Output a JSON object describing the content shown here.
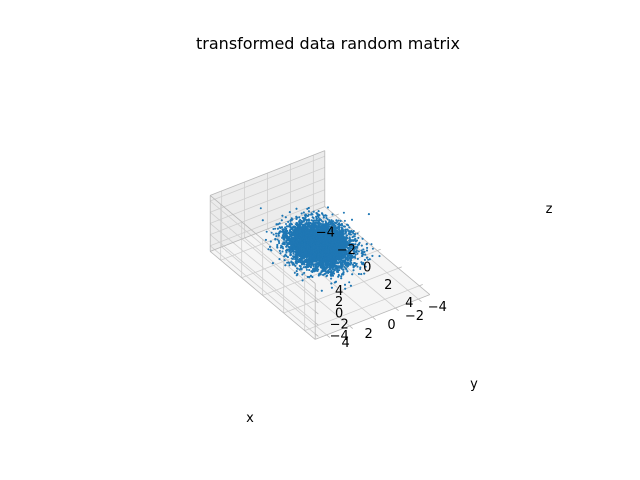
{
  "chart_data": {
    "type": "scatter",
    "projection": "3d",
    "title": "transformed data random matrix",
    "xlabel": "x",
    "ylabel": "y",
    "zlabel": "z",
    "xlim": [
      -5,
      5
    ],
    "ylim": [
      -5,
      5
    ],
    "zlim": [
      -5,
      5
    ],
    "x_ticks": [
      -4,
      -2,
      0,
      2,
      4
    ],
    "y_ticks": [
      -4,
      -2,
      0,
      2,
      4
    ],
    "z_ticks": [
      -4,
      -2,
      0,
      2,
      4
    ],
    "x_tick_labels": [
      "−4",
      "−2",
      "0",
      "2",
      "4"
    ],
    "y_tick_labels": [
      "−4",
      "−2",
      "0",
      "2",
      "4"
    ],
    "z_tick_labels": [
      "−4",
      "−2",
      "0",
      "2",
      "4"
    ],
    "grid": true,
    "marker_color": "#1f77b4",
    "marker_size": 1,
    "distribution": "standard normal",
    "point_count": 10000,
    "mean": [
      0,
      0,
      0
    ],
    "std": [
      1,
      1,
      1
    ]
  }
}
